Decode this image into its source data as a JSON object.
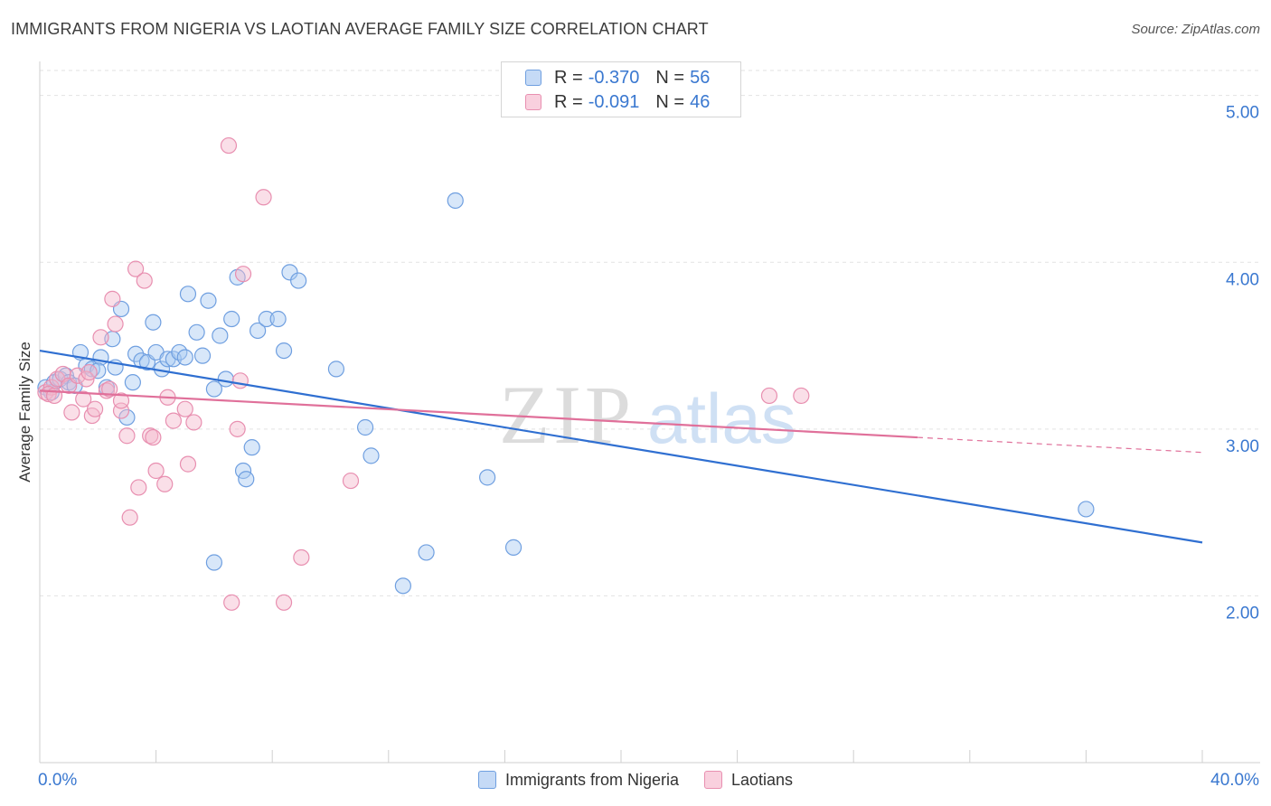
{
  "title": "IMMIGRANTS FROM NIGERIA VS LAOTIAN AVERAGE FAMILY SIZE CORRELATION CHART",
  "source": "Source: ZipAtlas.com",
  "watermark": {
    "zip": "ZIP",
    "atlas": "atlas"
  },
  "legend_top": {
    "r_label": "R =",
    "n_label": "N =",
    "rows": [
      {
        "r": "-0.370",
        "n": "56"
      },
      {
        "r": "-0.091",
        "n": "46"
      }
    ]
  },
  "chart_data": {
    "type": "scatter",
    "title": "IMMIGRANTS FROM NIGERIA VS LAOTIAN AVERAGE FAMILY SIZE CORRELATION CHART",
    "xlabel": "",
    "ylabel": "Average Family Size",
    "xlim": [
      0,
      40
    ],
    "ylim": [
      1.0,
      5.15
    ],
    "x_tick_labels": [
      "0.0%",
      "40.0%"
    ],
    "y_ticks": [
      2.0,
      3.0,
      4.0,
      5.0
    ],
    "y_tick_labels": [
      "2.00",
      "3.00",
      "4.00",
      "5.00"
    ],
    "grid": true,
    "legend_position": "bottom",
    "colors": {
      "nigeria": "#a9c9f2",
      "nigeria_line": "#2f6fd1",
      "laotian": "#f5b8cd",
      "laotian_line": "#e0709a",
      "tick_label": "#3a78d0"
    },
    "series": [
      {
        "name": "Immigrants from Nigeria",
        "r": -0.37,
        "n": 56,
        "trend": {
          "x0": 0,
          "y0": 3.47,
          "x1": 40,
          "y1": 2.32
        },
        "points": [
          [
            0.2,
            3.25
          ],
          [
            0.4,
            3.22
          ],
          [
            0.5,
            3.28
          ],
          [
            0.7,
            3.3
          ],
          [
            0.9,
            3.32
          ],
          [
            1.0,
            3.28
          ],
          [
            1.2,
            3.26
          ],
          [
            1.4,
            3.46
          ],
          [
            1.6,
            3.38
          ],
          [
            1.8,
            3.36
          ],
          [
            2.1,
            3.43
          ],
          [
            2.3,
            3.25
          ],
          [
            2.5,
            3.54
          ],
          [
            2.6,
            3.37
          ],
          [
            2.8,
            3.72
          ],
          [
            3.0,
            3.07
          ],
          [
            3.2,
            3.28
          ],
          [
            3.3,
            3.45
          ],
          [
            3.5,
            3.41
          ],
          [
            3.7,
            3.4
          ],
          [
            3.9,
            3.64
          ],
          [
            4.0,
            3.46
          ],
          [
            4.2,
            3.36
          ],
          [
            4.4,
            3.42
          ],
          [
            4.6,
            3.42
          ],
          [
            4.8,
            3.46
          ],
          [
            5.0,
            3.43
          ],
          [
            5.1,
            3.81
          ],
          [
            5.4,
            3.58
          ],
          [
            5.6,
            3.44
          ],
          [
            5.8,
            3.77
          ],
          [
            6.0,
            3.24
          ],
          [
            6.2,
            3.56
          ],
          [
            6.4,
            3.3
          ],
          [
            6.6,
            3.66
          ],
          [
            6.8,
            3.91
          ],
          [
            7.0,
            2.75
          ],
          [
            7.1,
            2.7
          ],
          [
            7.3,
            2.89
          ],
          [
            7.5,
            3.59
          ],
          [
            7.8,
            3.66
          ],
          [
            8.2,
            3.66
          ],
          [
            8.4,
            3.47
          ],
          [
            8.6,
            3.94
          ],
          [
            8.9,
            3.89
          ],
          [
            10.2,
            3.36
          ],
          [
            11.2,
            3.01
          ],
          [
            11.4,
            2.84
          ],
          [
            12.5,
            2.06
          ],
          [
            13.3,
            2.26
          ],
          [
            14.3,
            4.37
          ],
          [
            15.4,
            2.71
          ],
          [
            16.3,
            2.29
          ],
          [
            36.0,
            2.52
          ],
          [
            6.0,
            2.2
          ],
          [
            2.0,
            3.35
          ]
        ]
      },
      {
        "name": "Laotians",
        "r": -0.091,
        "n": 46,
        "trend": {
          "x0": 0,
          "y0": 3.23,
          "x1": 30.2,
          "y1": 2.95,
          "dash_x1": 40,
          "dash_y1": 2.86
        },
        "points": [
          [
            0.2,
            3.22
          ],
          [
            0.4,
            3.25
          ],
          [
            0.6,
            3.3
          ],
          [
            0.8,
            3.33
          ],
          [
            1.0,
            3.26
          ],
          [
            1.1,
            3.1
          ],
          [
            1.3,
            3.32
          ],
          [
            1.5,
            3.18
          ],
          [
            1.6,
            3.3
          ],
          [
            1.8,
            3.08
          ],
          [
            1.9,
            3.12
          ],
          [
            2.1,
            3.55
          ],
          [
            2.3,
            3.23
          ],
          [
            2.5,
            3.78
          ],
          [
            2.6,
            3.63
          ],
          [
            2.8,
            3.11
          ],
          [
            2.8,
            3.17
          ],
          [
            3.0,
            2.96
          ],
          [
            3.1,
            2.47
          ],
          [
            3.3,
            3.96
          ],
          [
            3.4,
            2.65
          ],
          [
            3.6,
            3.89
          ],
          [
            3.8,
            2.96
          ],
          [
            3.9,
            2.95
          ],
          [
            4.0,
            2.75
          ],
          [
            4.3,
            2.67
          ],
          [
            4.4,
            3.19
          ],
          [
            4.6,
            3.05
          ],
          [
            5.0,
            3.12
          ],
          [
            5.1,
            2.79
          ],
          [
            5.3,
            3.04
          ],
          [
            6.5,
            4.7
          ],
          [
            6.6,
            1.96
          ],
          [
            6.8,
            3.0
          ],
          [
            6.9,
            3.29
          ],
          [
            7.0,
            3.93
          ],
          [
            7.7,
            4.39
          ],
          [
            8.4,
            1.96
          ],
          [
            9.0,
            2.23
          ],
          [
            10.7,
            2.69
          ],
          [
            25.1,
            3.2
          ],
          [
            26.2,
            3.2
          ],
          [
            0.3,
            3.21
          ],
          [
            1.7,
            3.34
          ],
          [
            2.4,
            3.24
          ],
          [
            0.5,
            3.2
          ]
        ]
      }
    ]
  },
  "legend_bottom": [
    {
      "label": "Immigrants from Nigeria"
    },
    {
      "label": "Laotians"
    }
  ]
}
